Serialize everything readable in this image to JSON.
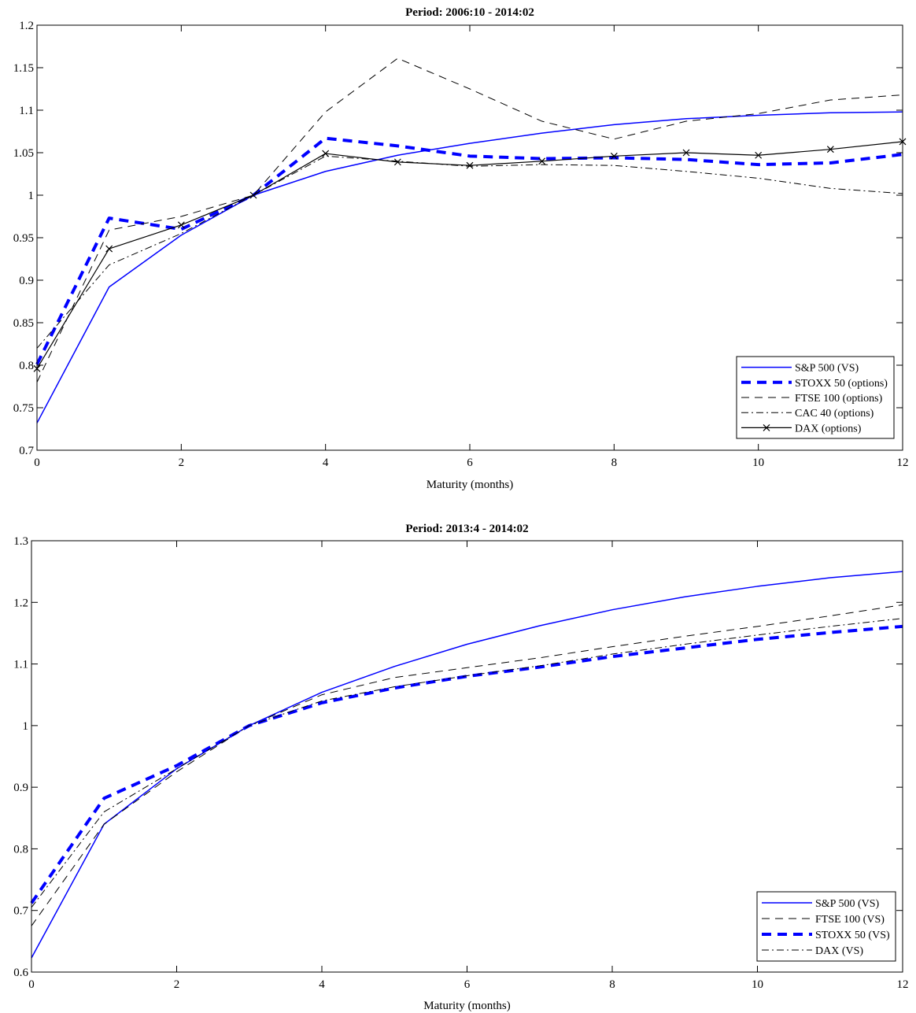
{
  "chart_data": [
    {
      "type": "line",
      "title": "Period: 2006:10 - 2014:02",
      "xlabel": "Maturity (months)",
      "ylabel": "",
      "xlim": [
        0,
        12
      ],
      "ylim": [
        0.7,
        1.2
      ],
      "xticks": [
        "0",
        "2",
        "4",
        "6",
        "8",
        "10",
        "12"
      ],
      "yticks": [
        "0.7",
        "0.75",
        "0.8",
        "0.85",
        "0.9",
        "0.95",
        "1",
        "1.05",
        "1.1",
        "1.15",
        "1.2"
      ],
      "grid": false,
      "legend_position": "bottom-right",
      "x": [
        0,
        1,
        2,
        3,
        4,
        5,
        6,
        7,
        8,
        9,
        10,
        11,
        12
      ],
      "series": [
        {
          "name": "S&P 500 (VS)",
          "color": "#0000ff",
          "style": "solid",
          "values": [
            0.732,
            0.892,
            0.953,
            1.0,
            1.028,
            1.047,
            1.061,
            1.073,
            1.083,
            1.09,
            1.094,
            1.097,
            1.098
          ]
        },
        {
          "name": "STOXX 50 (options)",
          "color": "#0000ff",
          "style": "thick-dash",
          "values": [
            0.801,
            0.973,
            0.96,
            1.0,
            1.067,
            1.058,
            1.046,
            1.043,
            1.044,
            1.042,
            1.036,
            1.038,
            1.048
          ]
        },
        {
          "name": "FTSE 100 (options)",
          "color": "#000000",
          "style": "dash",
          "values": [
            0.78,
            0.959,
            0.975,
            1.0,
            1.098,
            1.161,
            1.125,
            1.087,
            1.066,
            1.087,
            1.096,
            1.112,
            1.118
          ]
        },
        {
          "name": "CAC 40 (options)",
          "color": "#000000",
          "style": "dashdot",
          "values": [
            0.82,
            0.918,
            0.955,
            1.0,
            1.046,
            1.04,
            1.034,
            1.036,
            1.035,
            1.028,
            1.02,
            1.008,
            1.002
          ]
        },
        {
          "name": "DAX (options)",
          "color": "#000000",
          "style": "solid-x",
          "values": [
            0.796,
            0.937,
            0.965,
            1.0,
            1.049,
            1.039,
            1.035,
            1.04,
            1.046,
            1.05,
            1.047,
            1.054,
            1.063
          ]
        }
      ]
    },
    {
      "type": "line",
      "title": "Period: 2013:4 - 2014:02",
      "xlabel": "Maturity (months)",
      "ylabel": "",
      "xlim": [
        0,
        12
      ],
      "ylim": [
        0.6,
        1.3
      ],
      "xticks": [
        "0",
        "2",
        "4",
        "6",
        "8",
        "10",
        "12"
      ],
      "yticks": [
        "0.6",
        "0.7",
        "0.8",
        "0.9",
        "1",
        "1.1",
        "1.2",
        "1.3"
      ],
      "grid": false,
      "legend_position": "bottom-right",
      "x": [
        0,
        1,
        2,
        3,
        4,
        5,
        6,
        7,
        8,
        9,
        10,
        11,
        12
      ],
      "series": [
        {
          "name": "S&P 500 (VS)",
          "color": "#0000ff",
          "style": "solid",
          "values": [
            0.623,
            0.84,
            0.93,
            1.0,
            1.054,
            1.096,
            1.132,
            1.162,
            1.188,
            1.209,
            1.226,
            1.24,
            1.25
          ]
        },
        {
          "name": "FTSE 100 (VS)",
          "color": "#000000",
          "style": "dash",
          "values": [
            0.675,
            0.84,
            0.925,
            1.0,
            1.05,
            1.078,
            1.094,
            1.11,
            1.128,
            1.145,
            1.161,
            1.178,
            1.196
          ]
        },
        {
          "name": "STOXX 50 (VS)",
          "color": "#0000ff",
          "style": "thick-dash",
          "values": [
            0.712,
            0.882,
            0.935,
            1.0,
            1.037,
            1.061,
            1.08,
            1.095,
            1.112,
            1.126,
            1.14,
            1.151,
            1.161
          ]
        },
        {
          "name": "DAX (VS)",
          "color": "#000000",
          "style": "dashdot",
          "values": [
            0.705,
            0.86,
            0.93,
            1.0,
            1.04,
            1.063,
            1.081,
            1.097,
            1.116,
            1.132,
            1.147,
            1.161,
            1.174
          ]
        }
      ]
    }
  ]
}
